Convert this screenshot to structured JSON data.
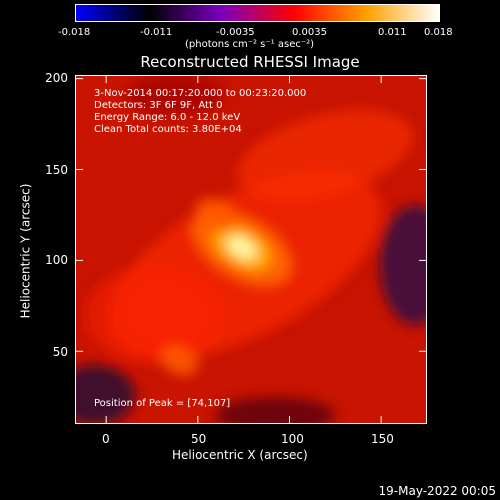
{
  "colorbar": {
    "ticks": [
      "-0.018",
      "-0.011",
      "-0.0035",
      "0.0035",
      "0.011",
      "0.018"
    ],
    "unit_label": "(photons cm⁻² s⁻¹ asec⁻²)",
    "colors": [
      "#0000ff",
      "#000000",
      "#7a00c0",
      "#ff0000",
      "#ffa000",
      "#ffffff"
    ]
  },
  "chart_data": {
    "type": "heatmap",
    "title": "Reconstructed RHESSI Image",
    "xlabel": "Heliocentric X (arcsec)",
    "ylabel": "Heliocentric Y (arcsec)",
    "xlim": [
      -17,
      175
    ],
    "ylim": [
      10,
      202
    ],
    "xticks": [
      "0",
      "50",
      "100",
      "150"
    ],
    "yticks": [
      "50",
      "100",
      "150",
      "200"
    ],
    "annotations": [
      "3-Nov-2014 00:17:20.000 to 00:23:20.000",
      "Detectors: 3F 6F 9F, Att 0",
      "Energy Range: 6.0 - 12.0 keV",
      "Clean     Total counts: 3.80E+04"
    ],
    "peak_label": "Position of Peak = [74,107]",
    "peak": [
      74,
      107
    ],
    "sources": [
      {
        "x": 74,
        "y": 107,
        "intensity": 1.0
      },
      {
        "x": 40,
        "y": 45,
        "intensity": 0.45
      },
      {
        "x": 60,
        "y": 125,
        "intensity": 0.55
      }
    ]
  },
  "footer": {
    "date": "19-May-2022 00:05"
  }
}
